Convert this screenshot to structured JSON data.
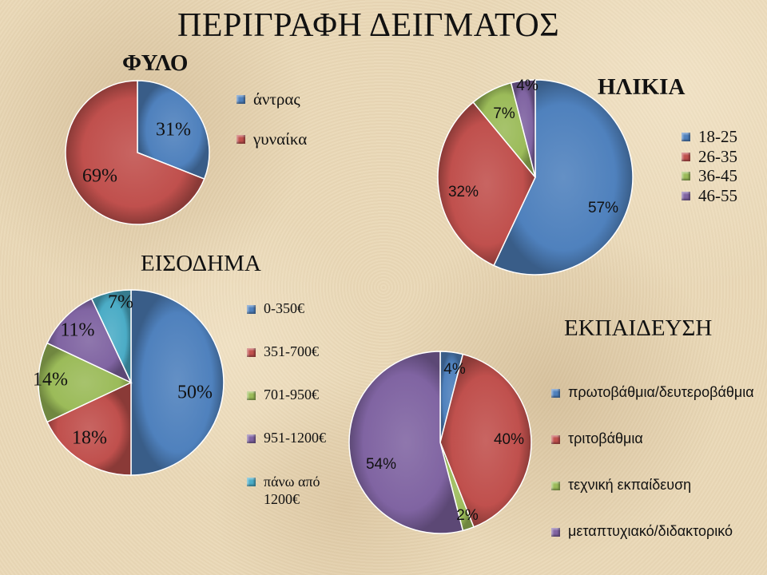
{
  "slide_title": "ΠΕΡΙΓΡΑΦΗ ΔΕΙΓΜΑΤΟΣ",
  "chart_data": [
    {
      "type": "pie",
      "title": "ΦΥΛΟ",
      "categories": [
        "άντρας",
        "γυναίκα"
      ],
      "values": [
        31,
        69
      ],
      "labels": [
        "31%",
        "69%"
      ],
      "colors": [
        "#4f81bd",
        "#c0504d"
      ],
      "legend": "right"
    },
    {
      "type": "pie",
      "title": "ΗΛΙΚΙΑ",
      "categories": [
        "18-25",
        "26-35",
        "36-45",
        "46-55"
      ],
      "values": [
        57,
        32,
        7,
        4
      ],
      "labels": [
        "57%",
        "32%",
        "7%",
        "4%"
      ],
      "colors": [
        "#4f81bd",
        "#c0504d",
        "#9bbb59",
        "#8064a2"
      ],
      "legend": "right"
    },
    {
      "type": "pie",
      "title": "ΕΙΣΟΔΗΜΑ",
      "categories": [
        "0-350€",
        "351-700€",
        "701-950€",
        "951-1200€",
        "πάνω από 1200€"
      ],
      "values": [
        50,
        18,
        14,
        11,
        7
      ],
      "labels": [
        "50%",
        "18%",
        "14%",
        "11%",
        "7%"
      ],
      "colors": [
        "#4f81bd",
        "#c0504d",
        "#9bbb59",
        "#8064a2",
        "#4bacc6"
      ],
      "legend": "right"
    },
    {
      "type": "pie",
      "title": "ΕΚΠΑΙΔΕΥΣΗ",
      "categories": [
        "πρωτοβάθμια/δευτεροβάθμια",
        "τριτοβάθμια",
        "τεχνική εκπαίδευση",
        "μεταπτυχιακό/διδακτορικό"
      ],
      "values": [
        4,
        40,
        2,
        54
      ],
      "labels": [
        "4%",
        "40%",
        "2%",
        "54%"
      ],
      "colors": [
        "#4f81bd",
        "#c0504d",
        "#9bbb59",
        "#8064a2"
      ],
      "legend": "right"
    }
  ]
}
